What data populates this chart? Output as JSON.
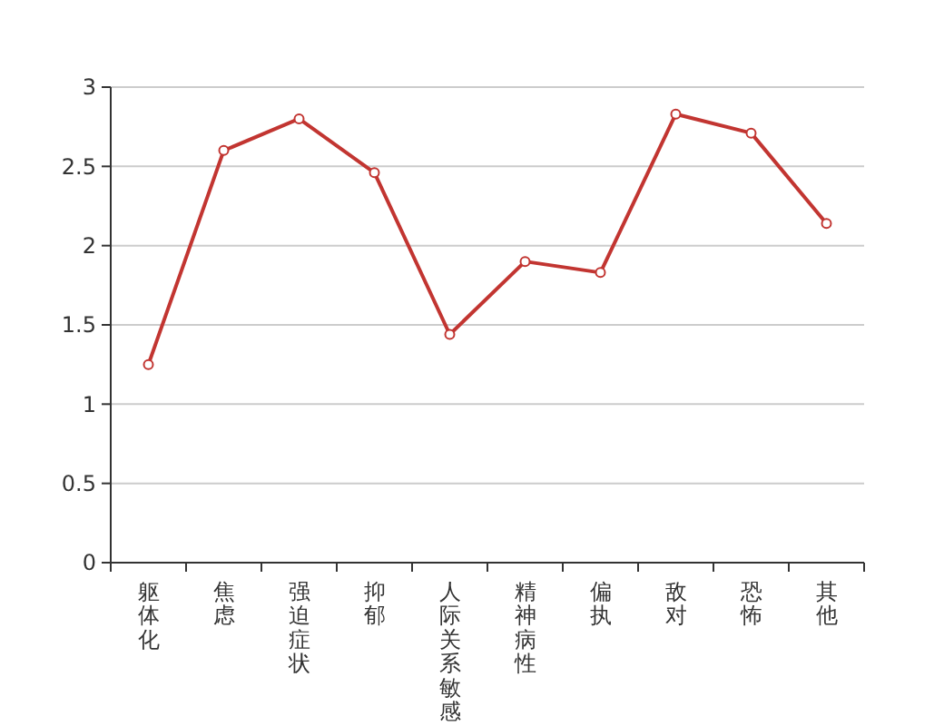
{
  "chart_data": {
    "type": "line",
    "categories": [
      "躯体化",
      "焦虑",
      "强迫症状",
      "抑郁",
      "人际关系敏感",
      "精神病性",
      "偏执",
      "敌对",
      "恐怖",
      "其他"
    ],
    "series": [
      {
        "color": "#c23531",
        "values": [
          1.25,
          2.6,
          2.8,
          2.46,
          1.44,
          1.9,
          1.83,
          2.83,
          2.71,
          2.14
        ]
      }
    ],
    "ylim": [
      0,
      3
    ],
    "yticks": [
      0,
      0.5,
      1,
      1.5,
      2,
      2.5,
      3
    ],
    "grid": "y",
    "marker": "circle",
    "line_style": "solid"
  }
}
